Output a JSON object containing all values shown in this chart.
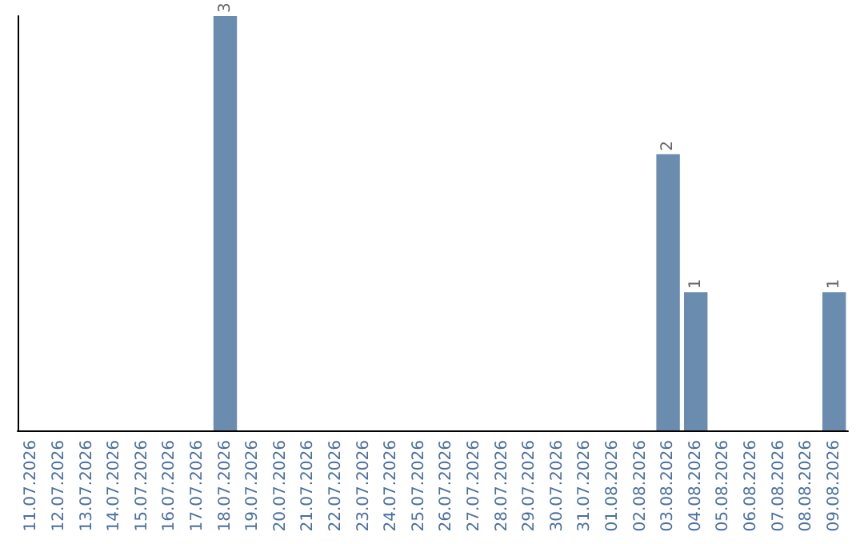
{
  "chart_data": {
    "type": "bar",
    "categories": [
      "11.07.2026",
      "12.07.2026",
      "13.07.2026",
      "14.07.2026",
      "15.07.2026",
      "16.07.2026",
      "17.07.2026",
      "18.07.2026",
      "19.07.2026",
      "20.07.2026",
      "21.07.2026",
      "22.07.2026",
      "23.07.2026",
      "24.07.2026",
      "25.07.2026",
      "26.07.2026",
      "27.07.2026",
      "28.07.2026",
      "29.07.2026",
      "30.07.2026",
      "31.07.2026",
      "01.08.2026",
      "02.08.2026",
      "03.08.2026",
      "04.08.2026",
      "05.08.2026",
      "06.08.2026",
      "07.08.2026",
      "08.08.2026",
      "09.08.2026"
    ],
    "values": [
      0,
      0,
      0,
      0,
      0,
      0,
      0,
      3,
      0,
      0,
      0,
      0,
      0,
      0,
      0,
      0,
      0,
      0,
      0,
      0,
      0,
      0,
      0,
      2,
      1,
      0,
      0,
      0,
      0,
      1
    ],
    "value_labels": [
      null,
      null,
      null,
      null,
      null,
      null,
      null,
      "3",
      null,
      null,
      null,
      null,
      null,
      null,
      null,
      null,
      null,
      null,
      null,
      null,
      null,
      null,
      null,
      "2",
      "1",
      null,
      null,
      null,
      null,
      "1"
    ],
    "color": "#6a8caf",
    "tick_labels": "x",
    "grid": false
  }
}
